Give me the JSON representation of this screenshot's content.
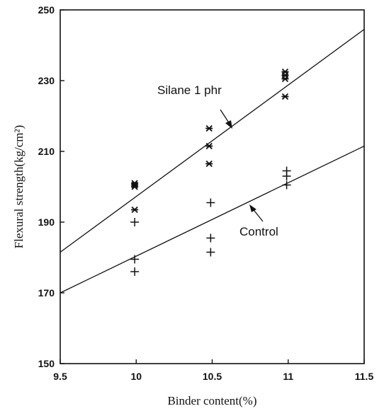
{
  "chart_data": {
    "type": "scatter",
    "xlabel": "Binder content(%)",
    "ylabel": "Flexural strength(kg/cm²)",
    "xlim": [
      9.5,
      11.5
    ],
    "ylim": [
      150,
      250
    ],
    "xticks": [
      "9.5",
      "10",
      "10.5",
      "11",
      "11.5"
    ],
    "yticks": [
      "150",
      "170",
      "190",
      "210",
      "230",
      "250"
    ],
    "grid": false,
    "series": [
      {
        "name": "Silane 1 phr",
        "marker": "asterisk",
        "points": [
          [
            9.99,
            201
          ],
          [
            9.99,
            200.5
          ],
          [
            9.99,
            200
          ],
          [
            9.99,
            193.5
          ],
          [
            10.48,
            216.5
          ],
          [
            10.48,
            211.5
          ],
          [
            10.48,
            206.5
          ],
          [
            10.98,
            232.5
          ],
          [
            10.98,
            231.5
          ],
          [
            10.98,
            230.5
          ],
          [
            10.98,
            225.5
          ]
        ],
        "fit_line": [
          [
            9.5,
            181.5
          ],
          [
            11.5,
            244.5
          ]
        ]
      },
      {
        "name": "Control",
        "marker": "plus",
        "points": [
          [
            9.99,
            190
          ],
          [
            9.99,
            179.5
          ],
          [
            9.99,
            176
          ],
          [
            10.49,
            195.5
          ],
          [
            10.49,
            185.5
          ],
          [
            10.49,
            181.5
          ],
          [
            10.99,
            204.5
          ],
          [
            10.99,
            203
          ],
          [
            10.99,
            200.5
          ]
        ],
        "fit_line": [
          [
            9.5,
            170
          ],
          [
            11.5,
            211.5
          ]
        ]
      }
    ],
    "annotations": [
      {
        "text": "Silane 1 phr",
        "series": 0
      },
      {
        "text": "Control",
        "series": 1
      }
    ]
  }
}
